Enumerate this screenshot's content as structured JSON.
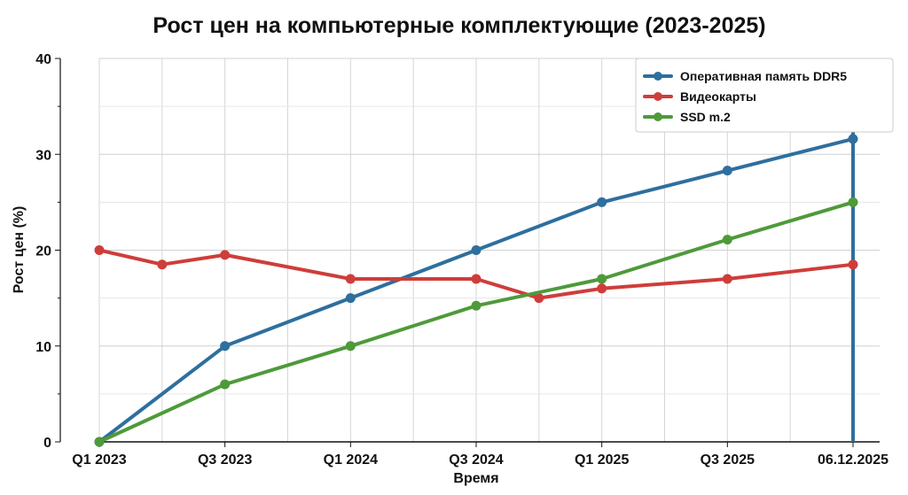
{
  "chart_data": {
    "type": "line",
    "title": "Рост цен на компьютерные комплектующие (2023-2025)",
    "xlabel": "Время",
    "ylabel": "Рост цен (%)",
    "x_ticks": [
      "Q1 2023",
      "Q3 2023",
      "Q1 2024",
      "Q3 2024",
      "Q1 2025",
      "Q3 2025",
      "06.12.2025"
    ],
    "x_range": [
      0,
      6
    ],
    "ylim": [
      0,
      40
    ],
    "y_ticks": [
      0,
      10,
      20,
      30,
      40
    ],
    "grid": true,
    "legend_position": "top-right",
    "series": [
      {
        "name": "Оперативная память DDR5",
        "color": "#2e6f9e",
        "x": [
          0,
          1,
          2,
          3,
          4,
          5,
          6
        ],
        "y": [
          0,
          10,
          15,
          20,
          25,
          28.3,
          31.6
        ],
        "final_drop": true
      },
      {
        "name": "Видеокарты",
        "color": "#cf3d3a",
        "x": [
          0,
          0.5,
          1,
          2,
          3,
          3.5,
          4,
          5,
          6
        ],
        "y": [
          20,
          18.5,
          19.5,
          17,
          17,
          15,
          16,
          17,
          18.5
        ]
      },
      {
        "name": "SSD m.2",
        "color": "#4e9a3a",
        "x": [
          0,
          1,
          2,
          3,
          4,
          5,
          6
        ],
        "y": [
          0,
          6,
          10,
          14.2,
          17,
          21.1,
          25
        ]
      }
    ]
  }
}
